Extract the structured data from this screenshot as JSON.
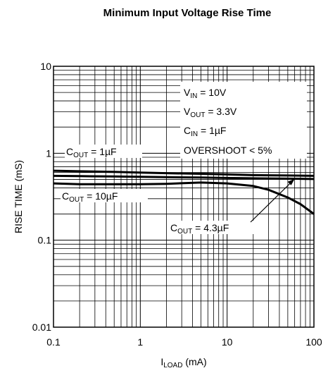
{
  "chart_data": {
    "type": "line",
    "title": "Minimum Input Voltage Rise Time",
    "xlabel": {
      "main": "I",
      "sub": "LOAD",
      "rest": " (mA)"
    },
    "ylabel": "RISE TIME (mS)",
    "x_scale": "log",
    "y_scale": "log",
    "xlim": [
      0.1,
      100
    ],
    "ylim": [
      0.01,
      10
    ],
    "x_ticks": [
      {
        "value": 0.1,
        "label": "0.1"
      },
      {
        "value": 1,
        "label": "1"
      },
      {
        "value": 10,
        "label": "10"
      },
      {
        "value": 100,
        "label": "100"
      }
    ],
    "y_ticks": [
      {
        "value": 0.01,
        "label": "0.01"
      },
      {
        "value": 0.1,
        "label": "0.1"
      },
      {
        "value": 1,
        "label": "1"
      },
      {
        "value": 10,
        "label": "10"
      }
    ],
    "grid": true,
    "series": [
      {
        "name": "COUT = 1µF",
        "x": [
          0.1,
          0.2,
          0.5,
          1,
          2,
          5,
          10,
          20,
          50,
          100
        ],
        "y": [
          0.63,
          0.62,
          0.61,
          0.6,
          0.59,
          0.58,
          0.57,
          0.56,
          0.555,
          0.55
        ]
      },
      {
        "name": "COUT = 4.3µF",
        "x": [
          0.1,
          0.2,
          0.5,
          1,
          2,
          5,
          10,
          20,
          50,
          100
        ],
        "y": [
          0.55,
          0.545,
          0.54,
          0.535,
          0.53,
          0.525,
          0.52,
          0.515,
          0.51,
          0.505
        ]
      },
      {
        "name": "COUT = 10µF",
        "x": [
          0.1,
          0.2,
          0.5,
          1,
          2,
          5,
          10,
          20,
          30,
          50,
          70,
          100
        ],
        "y": [
          0.45,
          0.44,
          0.44,
          0.44,
          0.445,
          0.46,
          0.45,
          0.42,
          0.38,
          0.31,
          0.26,
          0.2
        ]
      }
    ],
    "conditions": [
      {
        "main": "V",
        "sub": "IN",
        "rest": " = 10V"
      },
      {
        "main": "V",
        "sub": "OUT",
        "rest": " = 3.3V"
      },
      {
        "main": "C",
        "sub": "IN",
        "rest": " = 1µF"
      },
      {
        "main": "OVERSHOOT < 5%",
        "sub": "",
        "rest": ""
      }
    ],
    "annotations": [
      {
        "series_index": 0,
        "main": "C",
        "sub": "OUT",
        "rest": " = 1µF"
      },
      {
        "series_index": 2,
        "main": "C",
        "sub": "OUT",
        "rest": " = 10µF"
      },
      {
        "series_index": 1,
        "main": "C",
        "sub": "OUT",
        "rest": " = 4.3µF"
      }
    ]
  }
}
